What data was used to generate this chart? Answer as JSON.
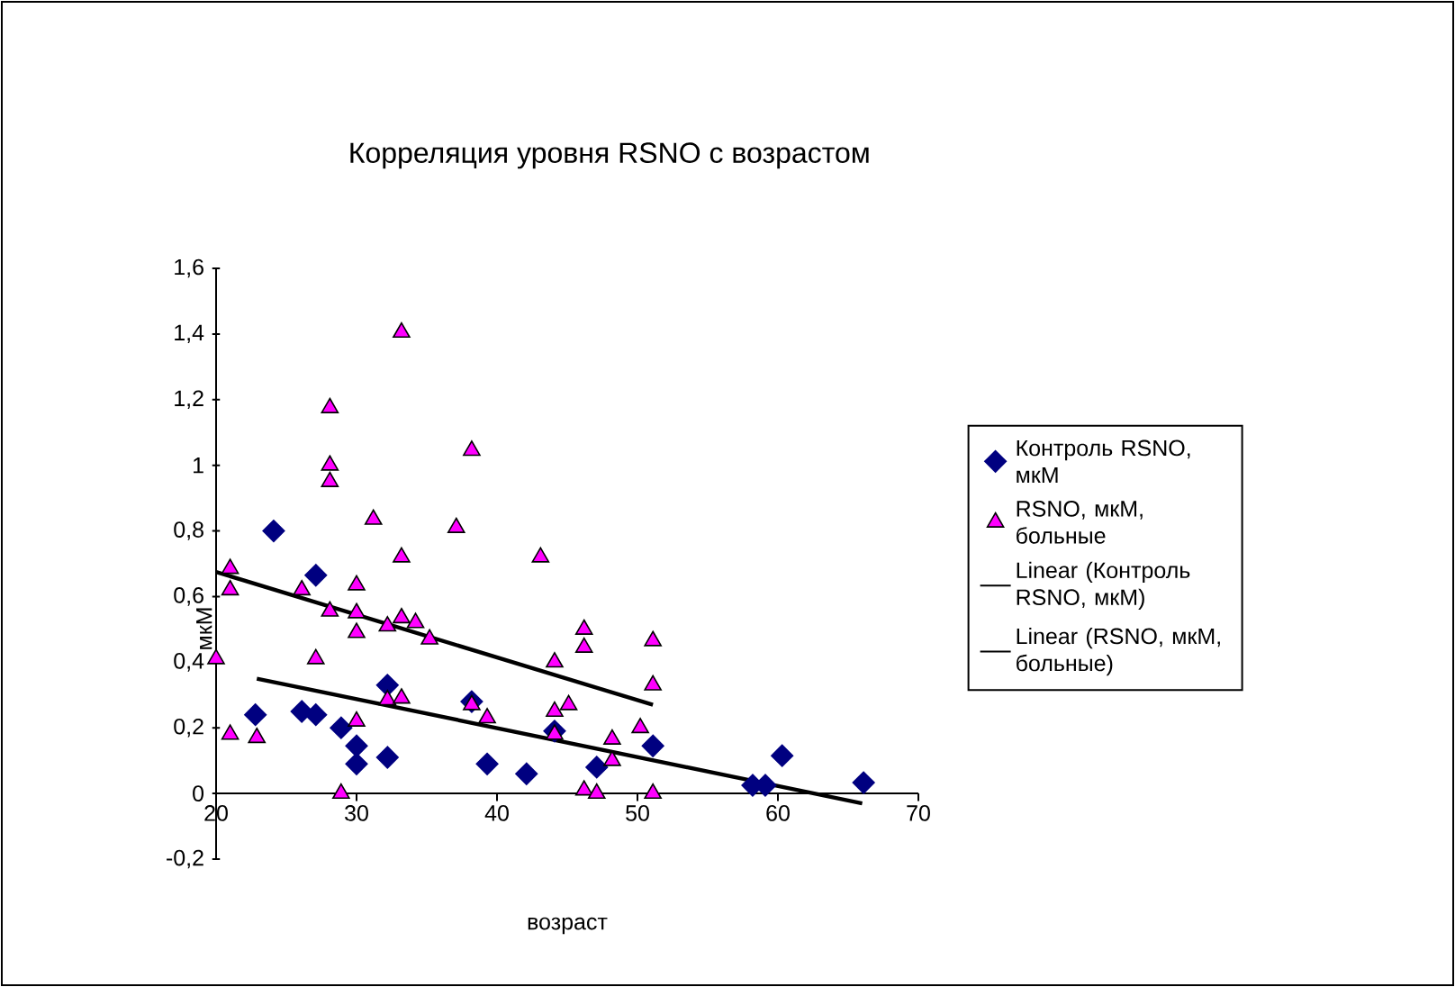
{
  "chart_data": {
    "type": "scatter",
    "title": "Корреляция уровня RSNO с возрастом",
    "xlabel": "возраст",
    "ylabel": "мкМ",
    "xlim": [
      20,
      70
    ],
    "xticks": [
      20,
      30,
      40,
      50,
      60,
      70
    ],
    "ylim": [
      -0.2,
      1.6
    ],
    "yticks": [
      {
        "value": -0.2,
        "label": "-0,2"
      },
      0,
      {
        "value": 0.2,
        "label": "0,2"
      },
      {
        "value": 0.4,
        "label": "0,4"
      },
      {
        "value": 0.6,
        "label": "0,6"
      },
      {
        "value": 0.8,
        "label": "0,8"
      },
      1,
      {
        "value": 1.2,
        "label": "1,2"
      },
      {
        "value": 1.4,
        "label": "1,4"
      },
      {
        "value": 1.6,
        "label": "1,6"
      }
    ],
    "legend": "right",
    "series": [
      {
        "name": "Контроль RSNO, мкМ",
        "type": "scatter",
        "marker": "diamond",
        "color": "#000080",
        "x": [
          24.1,
          27.1,
          22.8,
          26.1,
          27.1,
          28.9,
          30.0,
          30.0,
          32.2,
          32.2,
          33.2,
          38.2,
          39.3,
          42.1,
          44.1,
          47.1,
          51.1,
          58.2,
          59.1,
          60.3,
          66.1
        ],
        "values": [
          0.8,
          0.665,
          0.24,
          0.25,
          0.24,
          0.2,
          0.145,
          0.09,
          0.33,
          0.11,
          null,
          0.28,
          0.09,
          0.06,
          0.19,
          0.08,
          0.145,
          0.025,
          0.025,
          0.115,
          0.033
        ]
      },
      {
        "name": "RSNO, мкМ, больные",
        "type": "scatter",
        "marker": "triangle",
        "color": "#ff00ff",
        "x": [
          20.0,
          21.0,
          21.0,
          21.0,
          22.9,
          26.1,
          27.1,
          28.1,
          28.1,
          28.1,
          28.1,
          28.9,
          30.0,
          30.0,
          30.0,
          30.0,
          31.2,
          32.2,
          32.2,
          33.2,
          33.2,
          33.2,
          33.2,
          34.2,
          35.2,
          37.1,
          38.2,
          38.2,
          39.3,
          43.1,
          44.1,
          44.1,
          44.1,
          45.1,
          46.2,
          46.2,
          46.2,
          47.1,
          48.2,
          48.2,
          50.2,
          51.1,
          51.1,
          51.1
        ],
        "values": [
          0.41,
          0.685,
          0.62,
          0.18,
          0.17,
          0.62,
          0.41,
          1.175,
          1.0,
          0.95,
          0.555,
          0.0,
          0.635,
          0.55,
          0.49,
          0.22,
          0.835,
          0.51,
          0.285,
          1.405,
          0.72,
          0.535,
          0.29,
          0.52,
          0.47,
          0.81,
          1.045,
          0.27,
          0.23,
          0.72,
          0.25,
          0.18,
          0.4,
          0.27,
          0.5,
          0.445,
          0.01,
          0.0,
          0.165,
          0.1,
          0.2,
          0.465,
          0.33,
          0.0
        ]
      },
      {
        "name": "Linear (Контроль RSNO, мкМ)",
        "type": "line",
        "marker": "none",
        "line_style": "solid",
        "color": "#000000",
        "x": [
          22.9,
          66.0
        ],
        "values": [
          0.35,
          -0.03
        ]
      },
      {
        "name": "Linear (RSNO, мкМ, больные)",
        "type": "line",
        "marker": "none",
        "line_style": "solid",
        "color": "#000000",
        "x": [
          20.0,
          51.1
        ],
        "values": [
          0.675,
          0.27
        ]
      }
    ]
  }
}
